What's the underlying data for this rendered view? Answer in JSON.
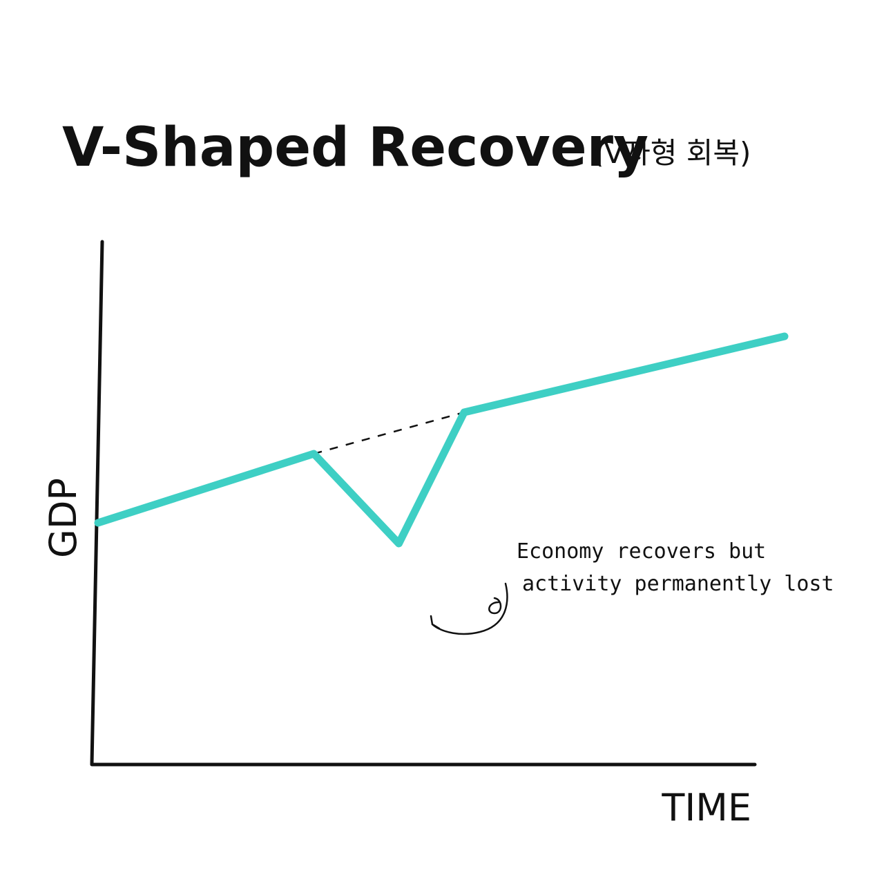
{
  "chart_data": {
    "type": "line",
    "title": "V-Shaped Recovery",
    "subtitle": "(V자형 회복)",
    "xlabel": "TIME",
    "ylabel": "GDP",
    "grid": false,
    "legend": "none",
    "colors": {
      "series": "#3ecfc4",
      "axes": "#111111",
      "trend": "#111111"
    },
    "series": [
      {
        "x": [
          0,
          3.3,
          4.6,
          5.6,
          10.5
        ],
        "values": [
          3.5,
          4.5,
          3.2,
          5.1,
          6.2
        ]
      }
    ],
    "trend": {
      "x": [
        3.3,
        5.6
      ],
      "values": [
        4.5,
        5.1
      ]
    },
    "annotation": {
      "lines": [
        "Economy recovers but",
        "activity permanently lost"
      ]
    }
  }
}
